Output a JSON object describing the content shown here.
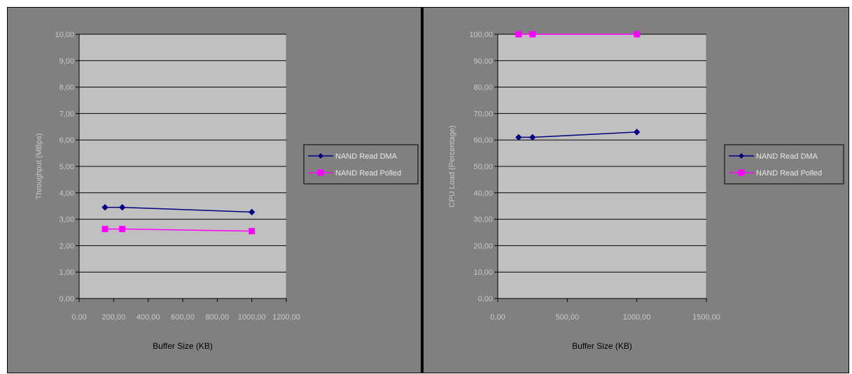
{
  "chart_data": [
    {
      "type": "line",
      "xlabel": "Buffer Size (KB)",
      "ylabel": "Throughput (MBps)",
      "xlim": [
        0,
        1200
      ],
      "ylim": [
        0,
        10
      ],
      "x_ticks": [
        "0,00",
        "200,00",
        "400,00",
        "600,00",
        "800,00",
        "1000,00",
        "1200,00"
      ],
      "y_ticks": [
        "0,00",
        "1,00",
        "2,00",
        "3,00",
        "4,00",
        "5,00",
        "6,00",
        "7,00",
        "8,00",
        "9,00",
        "10,00"
      ],
      "x_tick_values": [
        0,
        200,
        400,
        600,
        800,
        1000,
        1200
      ],
      "y_tick_values": [
        0,
        1,
        2,
        3,
        4,
        5,
        6,
        7,
        8,
        9,
        10
      ],
      "grid": true,
      "legend_position": "right",
      "series": [
        {
          "name": "NAND Read DMA",
          "color": "#000080",
          "marker": "diamond",
          "x": [
            150,
            250,
            1000
          ],
          "y": [
            3.45,
            3.45,
            3.27
          ]
        },
        {
          "name": "NAND Read Polled",
          "color": "#ff00ff",
          "marker": "square",
          "x": [
            150,
            250,
            1000
          ],
          "y": [
            2.63,
            2.63,
            2.55
          ]
        }
      ]
    },
    {
      "type": "line",
      "xlabel": "Buffer Size (KB)",
      "ylabel": "CPU Load (Percentage)",
      "xlim": [
        0,
        1500
      ],
      "ylim": [
        0,
        100
      ],
      "x_ticks": [
        "0,00",
        "500,00",
        "1000,00",
        "1500,00"
      ],
      "y_ticks": [
        "0,00",
        "10,00",
        "20,00",
        "30,00",
        "40,00",
        "50,00",
        "60,00",
        "70,00",
        "80,00",
        "90,00",
        "100,00"
      ],
      "x_tick_values": [
        0,
        500,
        1000,
        1500
      ],
      "y_tick_values": [
        0,
        10,
        20,
        30,
        40,
        50,
        60,
        70,
        80,
        90,
        100
      ],
      "grid": true,
      "legend_position": "right",
      "series": [
        {
          "name": "NAND Read DMA",
          "color": "#000080",
          "marker": "diamond",
          "x": [
            150,
            250,
            1000
          ],
          "y": [
            61,
            61,
            63
          ]
        },
        {
          "name": "NAND Read Polled",
          "color": "#ff00ff",
          "marker": "square",
          "x": [
            150,
            250,
            1000
          ],
          "y": [
            100,
            100,
            100
          ]
        }
      ]
    }
  ]
}
